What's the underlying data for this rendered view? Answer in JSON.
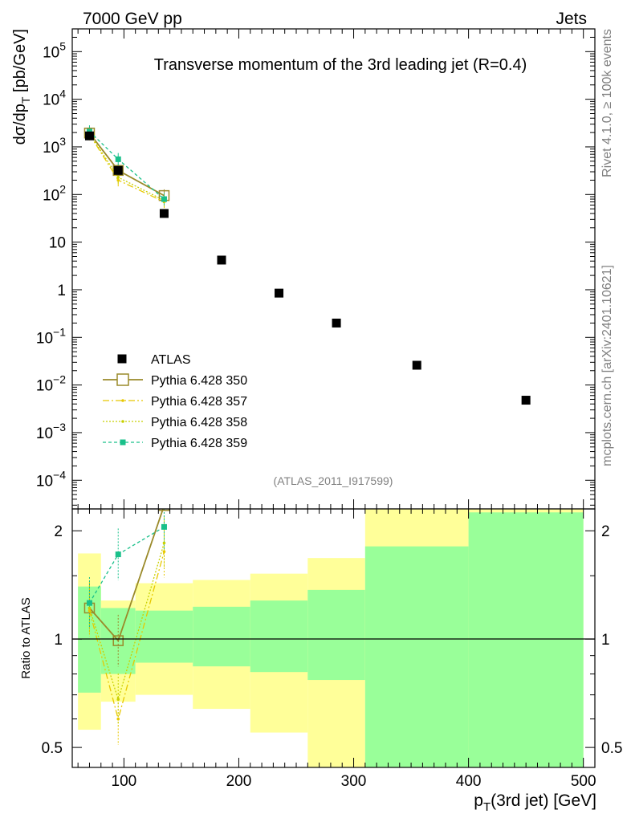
{
  "header": {
    "left": "7000 GeV pp",
    "right": "Jets"
  },
  "side": {
    "top": "Rivet 4.1.0, ≥ 100k events",
    "bottom": "mcplots.cern.ch [arXiv:2401.10621]"
  },
  "chart_data": [
    {
      "type": "scatter",
      "title": "Transverse momentum of the 3rd leading jet (R=0.4)",
      "ylabel_parts": [
        "dσ/dp",
        "T",
        " [pb/GeV]"
      ],
      "xlabel_parts": [
        "p",
        "T",
        "(3rd jet) [GeV]"
      ],
      "yscale": "log",
      "xlim": [
        55,
        510
      ],
      "ylim": [
        2.5e-05,
        300000
      ],
      "analysis_id": "(ATLAS_2011_I917599)",
      "y_ticks": [
        {
          "v": 100000,
          "m": "10",
          "e": "5"
        },
        {
          "v": 10000,
          "m": "10",
          "e": "4"
        },
        {
          "v": 1000,
          "m": "10",
          "e": "3"
        },
        {
          "v": 100,
          "m": "10",
          "e": "2"
        },
        {
          "v": 10,
          "m": "10",
          "e": ""
        },
        {
          "v": 1,
          "m": "1",
          "e": ""
        },
        {
          "v": 0.1,
          "m": "10",
          "e": "−1"
        },
        {
          "v": 0.01,
          "m": "10",
          "e": "−2"
        },
        {
          "v": 0.001,
          "m": "10",
          "e": "−3"
        },
        {
          "v": 0.0001,
          "m": "10",
          "e": "−4"
        }
      ],
      "legend": {
        "position": "bottom-left",
        "entries": [
          {
            "label": "ATLAS",
            "color": "#000000",
            "style": "marker"
          },
          {
            "label": "Pythia 6.428 350",
            "color": "#9a8a2a",
            "style": "solid-open-square"
          },
          {
            "label": "Pythia 6.428 357",
            "color": "#e8c800",
            "style": "dashdot"
          },
          {
            "label": "Pythia 6.428 358",
            "color": "#c8d000",
            "style": "dotted"
          },
          {
            "label": "Pythia 6.428 359",
            "color": "#19c08a",
            "style": "dashed-square"
          }
        ]
      },
      "data": {
        "x": [
          70,
          95,
          135,
          185,
          235,
          285,
          355,
          450
        ],
        "y": [
          1700,
          320,
          40,
          4.2,
          0.85,
          0.2,
          0.026,
          0.0048
        ]
      },
      "series": [
        {
          "name": "Pythia 6.428 350",
          "color": "#9a8a2a",
          "x": [
            70,
            95,
            135
          ],
          "y": [
            1950,
            320,
            95
          ]
        },
        {
          "name": "Pythia 6.428 357",
          "color": "#e8c800",
          "x": [
            70,
            95,
            135
          ],
          "y": [
            1850,
            200,
            70
          ]
        },
        {
          "name": "Pythia 6.428 358",
          "color": "#c8d000",
          "x": [
            70,
            95,
            135
          ],
          "y": [
            1900,
            230,
            75
          ]
        },
        {
          "name": "Pythia 6.428 359",
          "color": "#19c08a",
          "x": [
            70,
            95,
            135
          ],
          "y": [
            2100,
            550,
            80
          ]
        }
      ]
    },
    {
      "type": "line",
      "ylabel": "Ratio to ATLAS",
      "yscale": "log",
      "xlim": [
        55,
        510
      ],
      "ylim": [
        0.44,
        2.3
      ],
      "x_ticks": [
        100,
        200,
        300,
        400,
        500
      ],
      "y_ticks": [
        {
          "v": 0.5,
          "label": "0.5"
        },
        {
          "v": 1,
          "label": "1"
        },
        {
          "v": 2,
          "label": "2"
        }
      ],
      "bands": [
        {
          "x0": 60,
          "x1": 80,
          "y_lo": 0.56,
          "y_hi": 1.73,
          "g_lo": 0.71,
          "g_hi": 1.4
        },
        {
          "x0": 80,
          "x1": 110,
          "y_lo": 0.67,
          "y_hi": 1.28,
          "g_lo": 0.8,
          "g_hi": 1.22
        },
        {
          "x0": 110,
          "x1": 160,
          "y_lo": 0.7,
          "y_hi": 1.43,
          "g_lo": 0.86,
          "g_hi": 1.2
        },
        {
          "x0": 160,
          "x1": 210,
          "y_lo": 0.64,
          "y_hi": 1.46,
          "g_lo": 0.84,
          "g_hi": 1.23
        },
        {
          "x0": 210,
          "x1": 260,
          "y_lo": 0.55,
          "y_hi": 1.52,
          "g_lo": 0.81,
          "g_hi": 1.28
        },
        {
          "x0": 260,
          "x1": 310,
          "y_lo": 0.4,
          "y_hi": 1.68,
          "g_lo": 0.77,
          "g_hi": 1.37
        },
        {
          "x0": 310,
          "x1": 400,
          "y_lo": 0.4,
          "y_hi": 2.5,
          "g_lo": 0.4,
          "g_hi": 1.81
        },
        {
          "x0": 400,
          "x1": 500,
          "y_lo": 0.4,
          "y_hi": 2.5,
          "g_lo": 0.4,
          "g_hi": 2.25
        }
      ],
      "series": [
        {
          "name": "Pythia 6.428 350",
          "color": "#9a8a2a",
          "x": [
            70,
            95,
            135
          ],
          "y": [
            1.22,
            0.99,
            2.35
          ]
        },
        {
          "name": "Pythia 6.428 357",
          "color": "#e8c800",
          "x": [
            70,
            95,
            135
          ],
          "y": [
            1.2,
            0.6,
            1.75
          ]
        },
        {
          "name": "Pythia 6.428 358",
          "color": "#c8d000",
          "x": [
            70,
            95,
            135
          ],
          "y": [
            1.22,
            0.68,
            1.85
          ]
        },
        {
          "name": "Pythia 6.428 359",
          "color": "#19c08a",
          "x": [
            70,
            95,
            135
          ],
          "y": [
            1.26,
            1.72,
            2.05
          ]
        }
      ]
    }
  ]
}
